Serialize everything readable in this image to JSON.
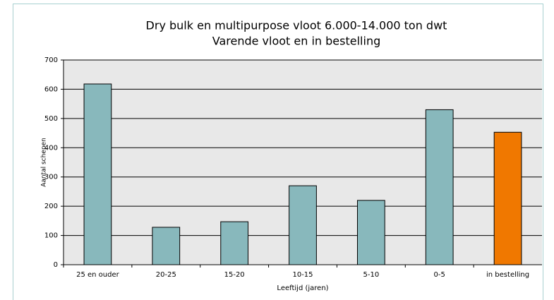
{
  "chart_data": {
    "type": "bar",
    "title": "Dry bulk en multipurpose vloot 6.000-14.000 ton dwt",
    "subtitle": "Varende vloot en in bestelling",
    "x_label": "Leeftijd (jaren)",
    "y_label": "Aantal schepen",
    "categories": [
      "25 en ouder",
      "20-25",
      "15-20",
      "10-15",
      "5-10",
      "0-5",
      "in bestelling"
    ],
    "values": [
      618,
      128,
      147,
      270,
      220,
      530,
      453
    ],
    "colors": [
      "#88b8bc",
      "#88b8bc",
      "#88b8bc",
      "#88b8bc",
      "#88b8bc",
      "#88b8bc",
      "#f07800"
    ],
    "ylim": [
      0,
      700
    ],
    "yticks": [
      0,
      100,
      200,
      300,
      400,
      500,
      600,
      700
    ],
    "grid": true
  }
}
